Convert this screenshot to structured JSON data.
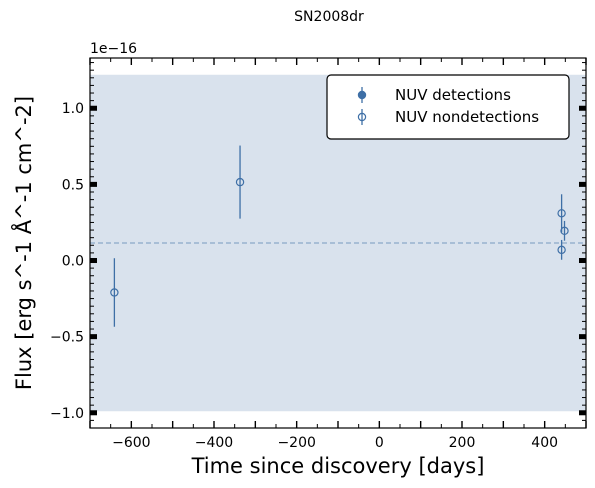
{
  "chart_data": {
    "type": "scatter",
    "title": "SN2008dr",
    "xlabel": "Time since discovery [days]",
    "ylabel": "Flux [erg s^-1 Å^-1 cm^-2]",
    "y_offset_label": "1e−16",
    "xlim": [
      -700,
      500
    ],
    "ylim": [
      -1.1,
      1.33
    ],
    "x_ticks": [
      -600,
      -400,
      -200,
      0,
      200,
      400
    ],
    "x_tick_labels": [
      "−600",
      "−400",
      "−200",
      "0",
      "200",
      "400"
    ],
    "y_ticks": [
      -1.0,
      -0.5,
      0.0,
      0.5,
      1.0
    ],
    "y_tick_labels": [
      "−1.0",
      "−0.5",
      "0.0",
      "0.5",
      "1.0"
    ],
    "shaded_band": {
      "y_min": -0.99,
      "y_max": 1.22,
      "color": "#d9e2ed"
    },
    "reference_line": {
      "y": 0.115,
      "style": "dashed",
      "color": "#8aa8c8"
    },
    "series": [
      {
        "name": "NUV detections",
        "marker": "filled-circle",
        "color": "#3e6fa6",
        "points": []
      },
      {
        "name": "NUV nondetections",
        "marker": "open-circle",
        "color": "#3e6fa6",
        "points": [
          {
            "x": -641,
            "y": -0.21,
            "yerr": 0.225
          },
          {
            "x": -337,
            "y": 0.515,
            "yerr": 0.24
          },
          {
            "x": 441,
            "y": 0.31,
            "yerr": 0.125
          },
          {
            "x": 441,
            "y": 0.07,
            "yerr": 0.065
          },
          {
            "x": 448,
            "y": 0.195,
            "yerr": 0.065
          }
        ]
      }
    ],
    "legend": {
      "placement": "top-right"
    },
    "grid": false
  }
}
